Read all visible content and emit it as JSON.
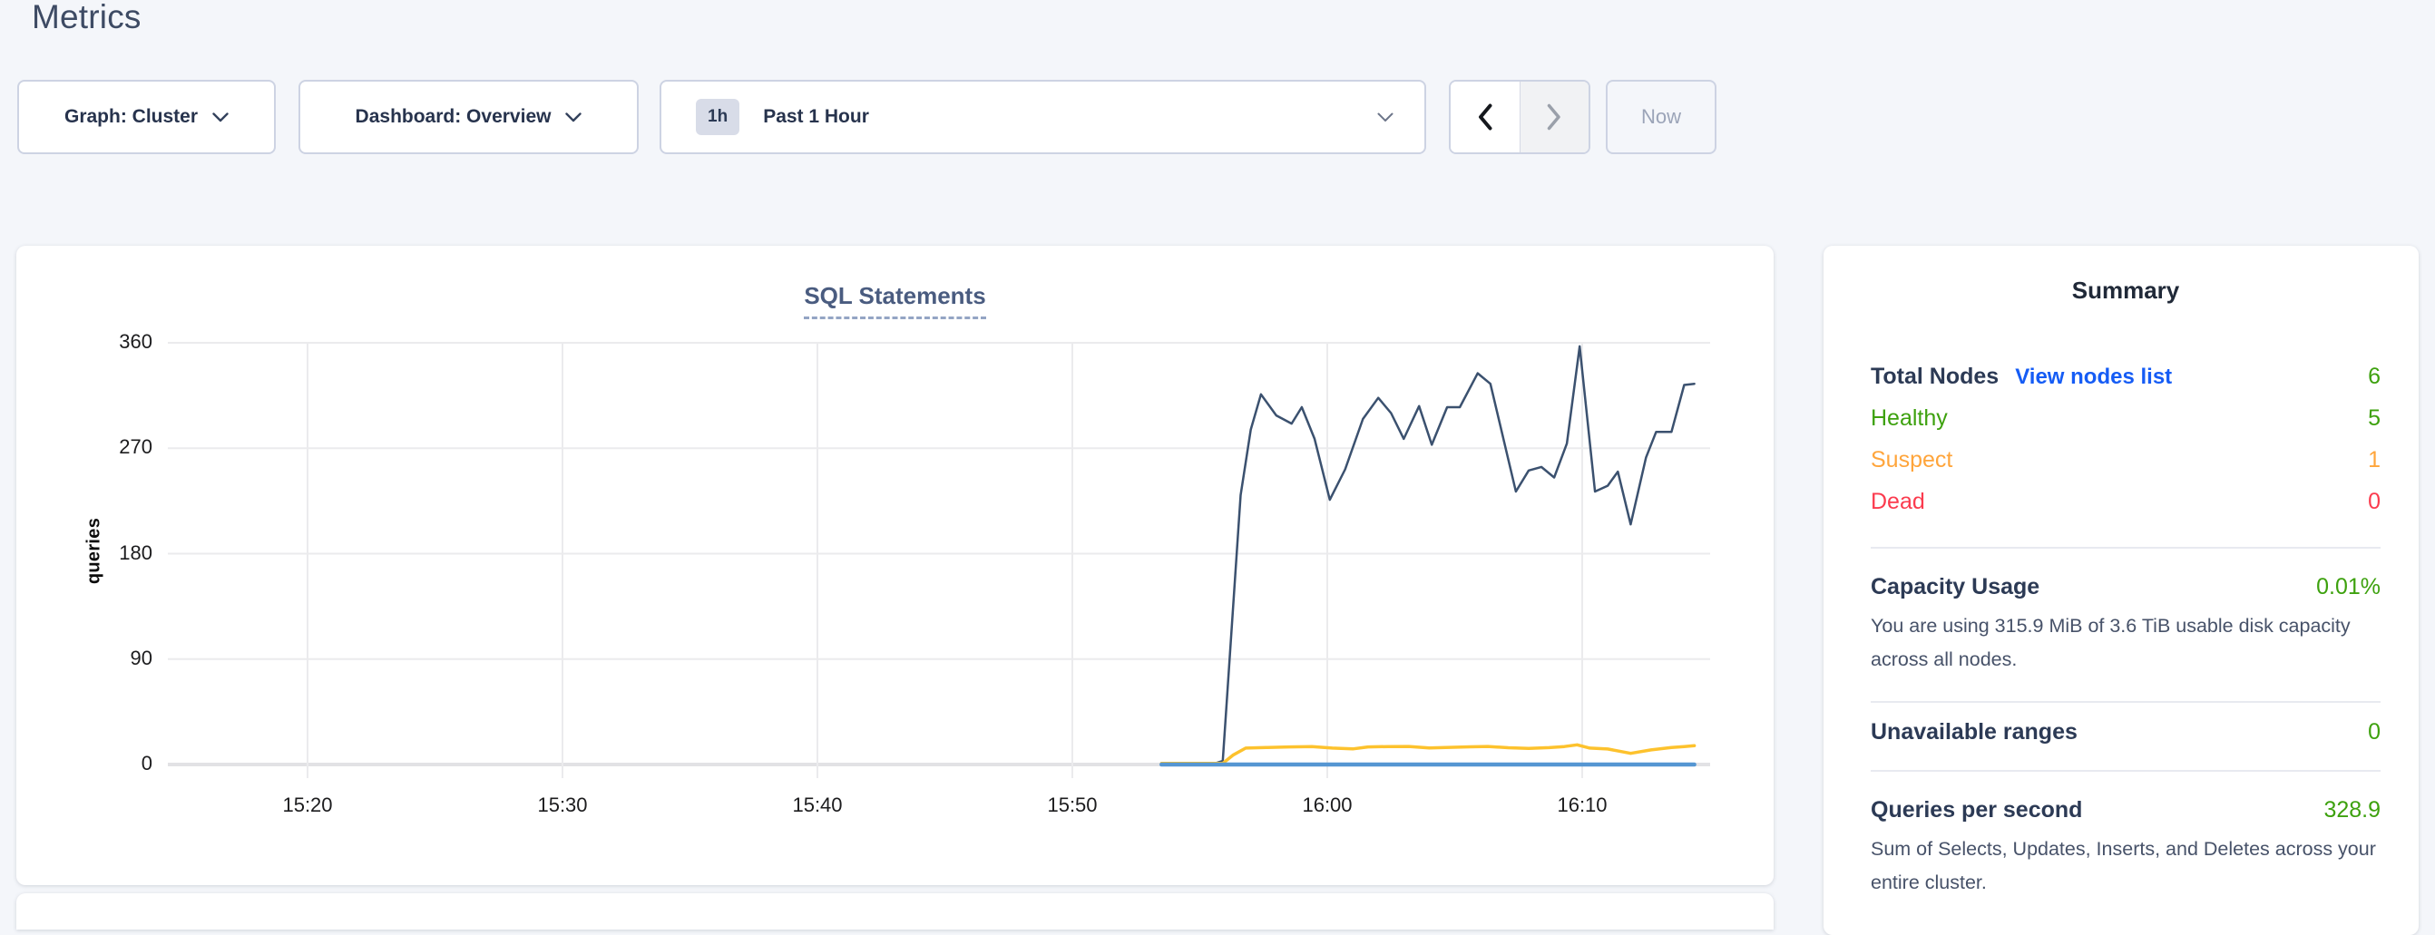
{
  "page": {
    "title": "Metrics"
  },
  "controls": {
    "graph_selector": {
      "label": "Graph: Cluster"
    },
    "dashboard_selector": {
      "label": "Dashboard: Overview"
    },
    "time_selector": {
      "badge": "1h",
      "label": "Past 1 Hour"
    },
    "now_button": {
      "label": "Now"
    }
  },
  "chart_data": {
    "type": "line",
    "title": "SQL Statements",
    "ylabel": "queries",
    "yticks": [
      0,
      90,
      180,
      270,
      360
    ],
    "ylim": [
      0,
      388
    ],
    "x_axis_note": "minutes after 15:00",
    "xlim_minutes": [
      14.5,
      75
    ],
    "xticks": [
      {
        "t": 20,
        "label": "15:20"
      },
      {
        "t": 30,
        "label": "15:30"
      },
      {
        "t": 40,
        "label": "15:40"
      },
      {
        "t": 50,
        "label": "15:50"
      },
      {
        "t": 60,
        "label": "16:00"
      },
      {
        "t": 70,
        "label": "16:10"
      }
    ],
    "grid": true,
    "legend": "none",
    "series": [
      {
        "color": "#3b516f",
        "stroke_width": 2.5,
        "points": [
          [
            53.5,
            1
          ],
          [
            54.2,
            1
          ],
          [
            55.0,
            1
          ],
          [
            55.6,
            1
          ],
          [
            55.9,
            3
          ],
          [
            56.6,
            230
          ],
          [
            57.0,
            286
          ],
          [
            57.4,
            316
          ],
          [
            58.0,
            298
          ],
          [
            58.6,
            291
          ],
          [
            59.0,
            305
          ],
          [
            59.5,
            278
          ],
          [
            60.1,
            226
          ],
          [
            60.7,
            252
          ],
          [
            61.4,
            295
          ],
          [
            62.0,
            313
          ],
          [
            62.5,
            300
          ],
          [
            63.0,
            278
          ],
          [
            63.6,
            306
          ],
          [
            64.1,
            273
          ],
          [
            64.7,
            305
          ],
          [
            65.2,
            305
          ],
          [
            65.9,
            334
          ],
          [
            66.4,
            325
          ],
          [
            67.4,
            233
          ],
          [
            67.9,
            251
          ],
          [
            68.4,
            254
          ],
          [
            68.9,
            245
          ],
          [
            69.4,
            274
          ],
          [
            69.9,
            357
          ],
          [
            70.5,
            233
          ],
          [
            71.0,
            238
          ],
          [
            71.4,
            250
          ],
          [
            71.9,
            205
          ],
          [
            72.5,
            262
          ],
          [
            72.9,
            284
          ],
          [
            73.5,
            284
          ],
          [
            74.0,
            324
          ],
          [
            74.4,
            325
          ]
        ]
      },
      {
        "color": "#fdc22d",
        "stroke_width": 3.5,
        "points": [
          [
            53.5,
            1
          ],
          [
            54.5,
            1
          ],
          [
            55.5,
            1
          ],
          [
            55.9,
            1
          ],
          [
            56.3,
            8
          ],
          [
            56.8,
            14
          ],
          [
            57.6,
            14.5
          ],
          [
            58.5,
            15
          ],
          [
            59.4,
            15.3
          ],
          [
            60.2,
            14
          ],
          [
            61.0,
            13.3
          ],
          [
            61.6,
            15
          ],
          [
            62.4,
            15.3
          ],
          [
            63.2,
            15.4
          ],
          [
            64.0,
            14.2
          ],
          [
            64.8,
            14.6
          ],
          [
            65.6,
            15.1
          ],
          [
            66.3,
            15.4
          ],
          [
            67.1,
            14.3
          ],
          [
            67.9,
            13.8
          ],
          [
            68.7,
            14.4
          ],
          [
            69.3,
            15.3
          ],
          [
            69.8,
            16.8
          ],
          [
            70.3,
            14.0
          ],
          [
            71.0,
            13.2
          ],
          [
            71.9,
            9.5
          ],
          [
            72.7,
            12.5
          ],
          [
            73.5,
            14.5
          ],
          [
            74.0,
            15.3
          ],
          [
            74.4,
            16.0
          ]
        ]
      },
      {
        "color": "#5596d2",
        "stroke_width": 4.5,
        "points": [
          [
            53.5,
            0
          ],
          [
            74.4,
            0
          ]
        ]
      }
    ]
  },
  "summary": {
    "title": "Summary",
    "total_nodes": {
      "label": "Total Nodes",
      "link": "View nodes list",
      "value": "6"
    },
    "node_status": [
      {
        "label": "Healthy",
        "value": "5",
        "color": "#3da10e"
      },
      {
        "label": "Suspect",
        "value": "1",
        "color": "#ffa53b"
      },
      {
        "label": "Dead",
        "value": "0",
        "color": "#fb3b4e"
      }
    ],
    "capacity": {
      "label": "Capacity Usage",
      "value": "0.01%",
      "description": "You are using 315.9 MiB of 3.6 TiB usable disk capacity across all nodes."
    },
    "unavailable_ranges": {
      "label": "Unavailable ranges",
      "value": "0"
    },
    "queries_per_second": {
      "label": "Queries per second",
      "value": "328.9",
      "description": "Sum of Selects, Updates, Inserts, and Deletes across your entire cluster."
    }
  },
  "colors": {
    "accent_green": "#3da10e",
    "accent_orange": "#ffa53b",
    "accent_red": "#fb3b4e",
    "link_blue": "#155cf5",
    "series_navy": "#3b516f",
    "series_yellow": "#fdc22d",
    "series_blue": "#5596d2",
    "grid_line": "#ebebed",
    "zero_line": "#e2e2e5"
  }
}
